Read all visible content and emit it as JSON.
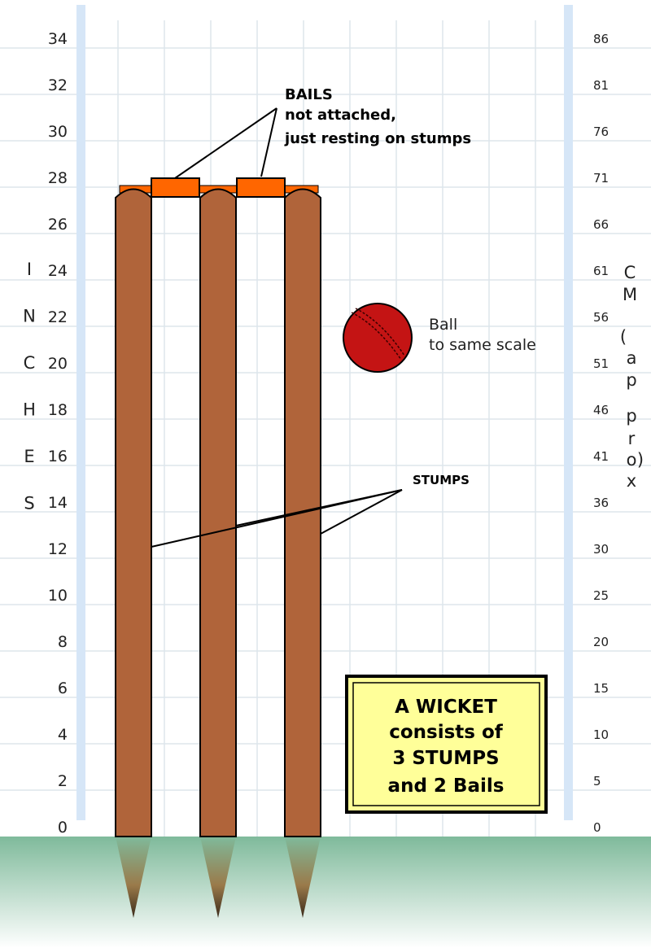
{
  "left_scale": {
    "title_letters": [
      "I",
      "N",
      "C",
      "H",
      "E",
      "S"
    ],
    "ticks": [
      "34",
      "32",
      "30",
      "28",
      "26",
      "24",
      "22",
      "20",
      "18",
      "16",
      "14",
      "12",
      "10",
      "8",
      "6",
      "4",
      "2",
      "0"
    ]
  },
  "right_scale": {
    "title_letters": [
      "C",
      "M",
      "(",
      "a",
      "p",
      "p",
      "r",
      "o",
      "x",
      ")"
    ],
    "ticks": [
      "86",
      "81",
      "76",
      "71",
      "66",
      "61",
      "56",
      "51",
      "46",
      "41",
      "36",
      "30",
      "25",
      "20",
      "15",
      "10",
      "5",
      "0"
    ]
  },
  "labels": {
    "bails_title": "BAILS",
    "bails_line1": "not attached,",
    "bails_line2": "just resting on stumps",
    "stumps": "STUMPS",
    "ball_line1": "Ball",
    "ball_line2": "to same scale"
  },
  "info_box": {
    "lines": [
      "A WICKET",
      "consists of",
      "3 STUMPS",
      "and 2 Bails"
    ]
  },
  "colors": {
    "stump": "#b0643a",
    "bail": "#ff6600",
    "ball": "#c41414",
    "grass_top": "#7fba9b",
    "box_fill": "#ffff99",
    "scale_bar": "#d6e6f7"
  }
}
